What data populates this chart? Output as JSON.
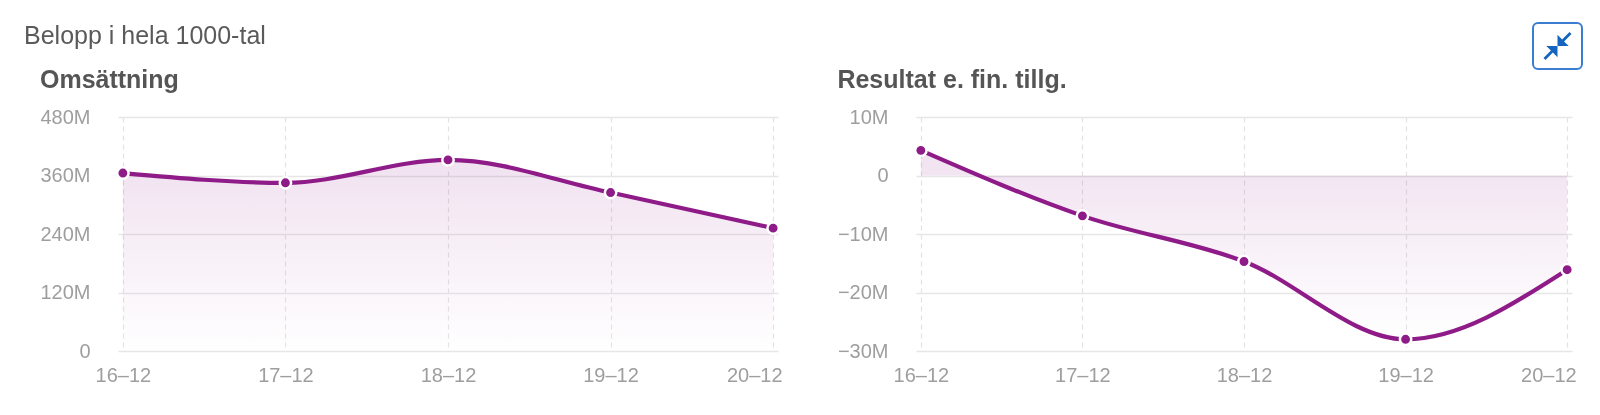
{
  "chart_data": [
    {
      "type": "area",
      "title": "Omsättning",
      "annotations": [
        "Belopp i hela 1000-tal"
      ],
      "categories": [
        "16–12",
        "17–12",
        "18–12",
        "19–12",
        "20–12"
      ],
      "values": [
        365,
        345,
        392,
        325,
        252
      ],
      "color": "#8e1b88",
      "ylim": [
        0,
        480
      ],
      "yticks": [
        0,
        {
          "value": 120,
          "label": "120M"
        },
        {
          "value": 240,
          "label": "240M"
        },
        {
          "value": 360,
          "label": "360M"
        },
        {
          "value": 480,
          "label": "480M"
        }
      ],
      "grid": true,
      "marker": "circle"
    },
    {
      "type": "area",
      "title": "Resultat e. fin. tillg.",
      "categories": [
        "16–12",
        "17–12",
        "18–12",
        "19–12",
        "20–12"
      ],
      "values": [
        4.3,
        -6.9,
        -14.7,
        -28,
        -16.1
      ],
      "color": "#8e1b88",
      "ylim": [
        -30,
        10
      ],
      "yticks": [
        {
          "value": -30,
          "label": "−30M"
        },
        {
          "value": -20,
          "label": "−20M"
        },
        {
          "value": -10,
          "label": "−10M"
        },
        0,
        {
          "value": 10,
          "label": "10M"
        }
      ],
      "grid": true,
      "marker": "circle"
    }
  ]
}
